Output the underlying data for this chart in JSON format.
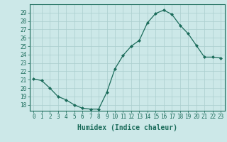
{
  "x": [
    0,
    1,
    2,
    3,
    4,
    5,
    6,
    7,
    8,
    9,
    10,
    11,
    12,
    13,
    14,
    15,
    16,
    17,
    18,
    19,
    20,
    21,
    22,
    23
  ],
  "y": [
    21.1,
    20.9,
    20.0,
    19.0,
    18.6,
    18.0,
    17.6,
    17.5,
    17.5,
    19.5,
    22.3,
    23.9,
    25.0,
    25.7,
    27.8,
    28.9,
    29.3,
    28.8,
    27.5,
    26.5,
    25.1,
    23.7,
    23.7,
    23.6
  ],
  "line_color": "#1a6b5a",
  "marker": "D",
  "marker_size": 2,
  "bg_color": "#cce8e8",
  "grid_color": "#aacece",
  "xlabel": "Humidex (Indice chaleur)",
  "ylim": [
    17.3,
    30.0
  ],
  "xlim": [
    -0.5,
    23.5
  ],
  "yticks": [
    18,
    19,
    20,
    21,
    22,
    23,
    24,
    25,
    26,
    27,
    28,
    29
  ],
  "xticks": [
    0,
    1,
    2,
    3,
    4,
    5,
    6,
    7,
    8,
    9,
    10,
    11,
    12,
    13,
    14,
    15,
    16,
    17,
    18,
    19,
    20,
    21,
    22,
    23
  ],
  "tick_fontsize": 5.5,
  "xlabel_fontsize": 7.0
}
